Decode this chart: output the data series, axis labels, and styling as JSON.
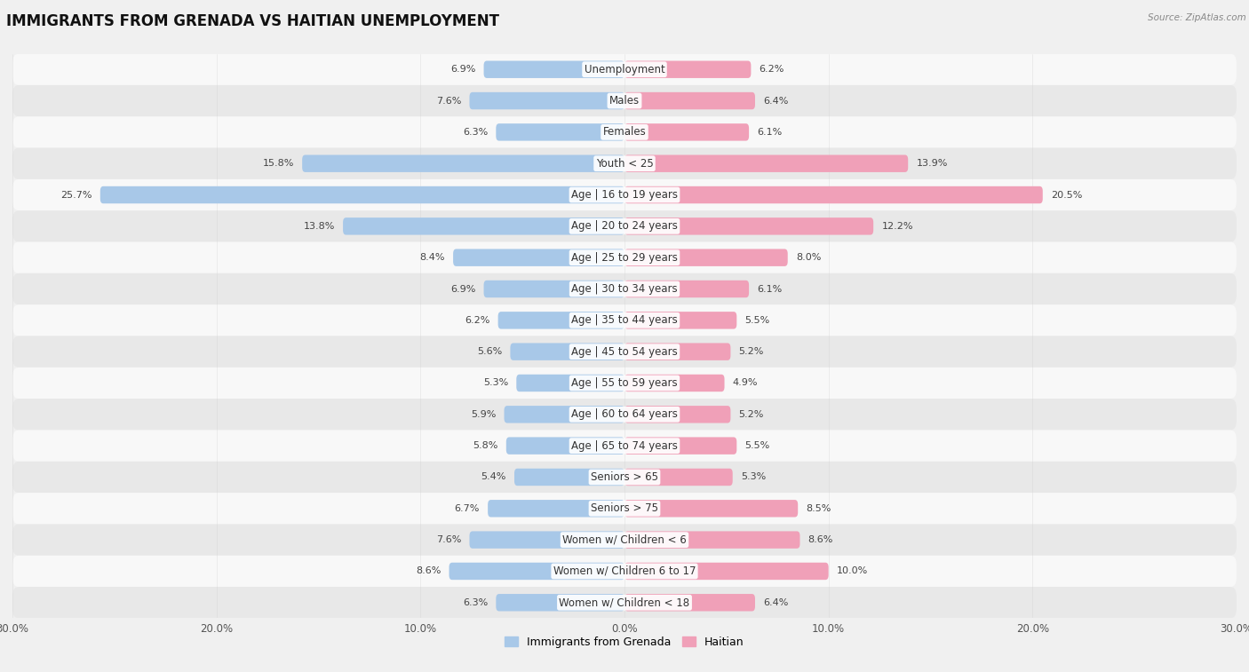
{
  "title": "IMMIGRANTS FROM GRENADA VS HAITIAN UNEMPLOYMENT",
  "source": "Source: ZipAtlas.com",
  "categories": [
    "Unemployment",
    "Males",
    "Females",
    "Youth < 25",
    "Age | 16 to 19 years",
    "Age | 20 to 24 years",
    "Age | 25 to 29 years",
    "Age | 30 to 34 years",
    "Age | 35 to 44 years",
    "Age | 45 to 54 years",
    "Age | 55 to 59 years",
    "Age | 60 to 64 years",
    "Age | 65 to 74 years",
    "Seniors > 65",
    "Seniors > 75",
    "Women w/ Children < 6",
    "Women w/ Children 6 to 17",
    "Women w/ Children < 18"
  ],
  "left_values": [
    6.9,
    7.6,
    6.3,
    15.8,
    25.7,
    13.8,
    8.4,
    6.9,
    6.2,
    5.6,
    5.3,
    5.9,
    5.8,
    5.4,
    6.7,
    7.6,
    8.6,
    6.3
  ],
  "right_values": [
    6.2,
    6.4,
    6.1,
    13.9,
    20.5,
    12.2,
    8.0,
    6.1,
    5.5,
    5.2,
    4.9,
    5.2,
    5.5,
    5.3,
    8.5,
    8.6,
    10.0,
    6.4
  ],
  "left_color": "#a8c8e8",
  "right_color": "#f0a0b8",
  "left_label": "Immigrants from Grenada",
  "right_label": "Haitian",
  "xlim": 30.0,
  "background_color": "#f0f0f0",
  "row_color_even": "#f8f8f8",
  "row_color_odd": "#e8e8e8",
  "title_fontsize": 12,
  "label_fontsize": 8.5,
  "value_fontsize": 8,
  "axis_label_fontsize": 8.5,
  "legend_fontsize": 9
}
